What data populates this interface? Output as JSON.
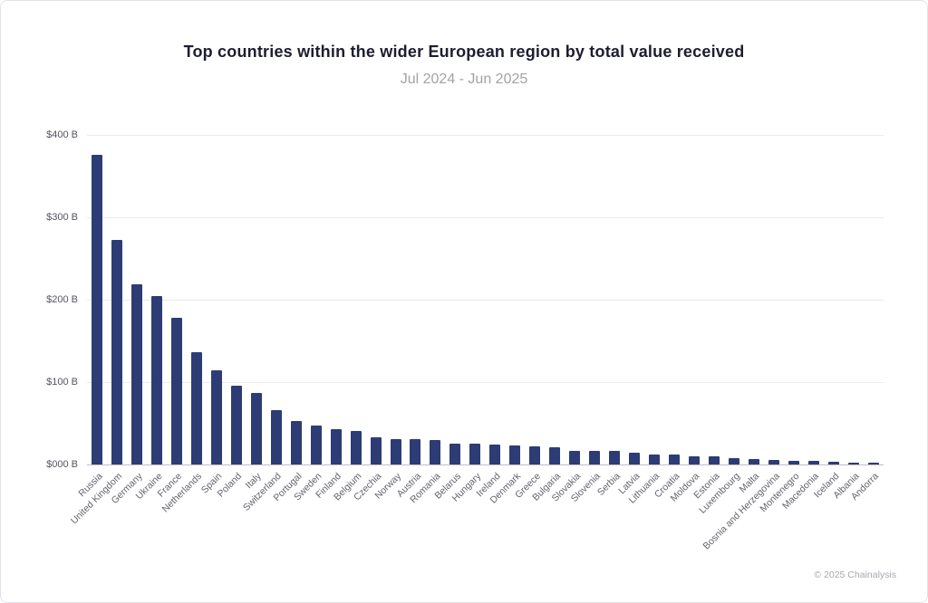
{
  "header": {
    "title": "Top countries within the wider European region by total value received",
    "subtitle": "Jul 2024 - Jun 2025"
  },
  "footer": {
    "copyright": "© 2025 Chainalysis"
  },
  "chart_data": {
    "type": "bar",
    "title": "Top countries within the wider European region by total value received",
    "subtitle": "Jul 2024 - Jun 2025",
    "xlabel": "",
    "ylabel": "",
    "ylim": [
      0,
      400
    ],
    "y_ticks": [
      "$400 B",
      "$300 B",
      "$200 B",
      "$100 B",
      "$000 B"
    ],
    "grid": true,
    "legend": "none",
    "bar_color": "#2d3c74",
    "categories": [
      "Russia",
      "United Kingdom",
      "Germany",
      "Ukraine",
      "France",
      "Netherlands",
      "Spain",
      "Poland",
      "Italy",
      "Switzerland",
      "Portugal",
      "Sweden",
      "Finland",
      "Belgium",
      "Czechia",
      "Norway",
      "Austria",
      "Romania",
      "Belarus",
      "Hungary",
      "Ireland",
      "Denmark",
      "Greece",
      "Bulgaria",
      "Slovakia",
      "Slovenia",
      "Serbia",
      "Latvia",
      "Lithuania",
      "Croatia",
      "Moldova",
      "Estonia",
      "Luxembourg",
      "Malta",
      "Bosnia and Herzegovina",
      "Montenegro",
      "Macedonia",
      "Iceland",
      "Albania",
      "Andorra"
    ],
    "values": [
      376,
      273,
      219,
      204,
      178,
      136,
      114,
      96,
      87,
      66,
      53,
      47,
      43,
      41,
      33,
      31,
      31,
      30,
      25,
      25,
      24,
      23,
      22,
      21,
      16,
      16,
      16,
      14,
      12,
      12,
      10,
      10,
      8,
      7,
      5,
      4,
      4,
      3,
      2,
      1
    ]
  }
}
